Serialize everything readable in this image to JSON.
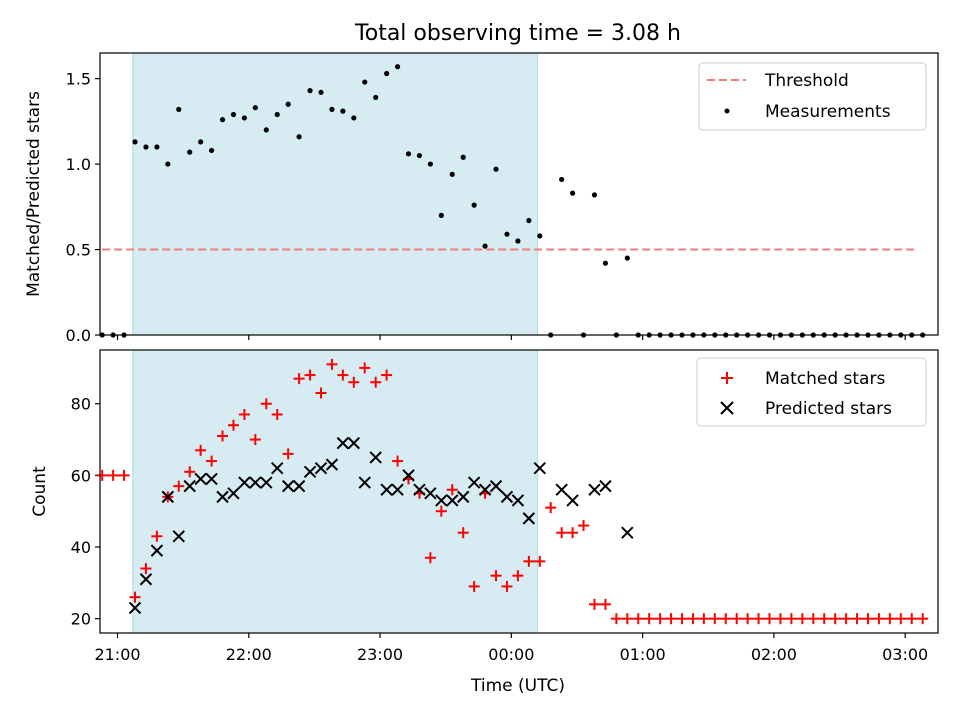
{
  "title": "Total observing time = 3.08 h",
  "colors": {
    "threshold": "#f08080",
    "measurement": "#000000",
    "matched": "#ff0000",
    "predicted": "#000000",
    "shade": "#add8e6"
  },
  "chart_data": [
    {
      "type": "scatter",
      "ylabel": "Matched/Predicted stars",
      "ylim": [
        0,
        1.65
      ],
      "yticks": [
        "0.0",
        "0.5",
        "1.0",
        "1.5"
      ],
      "shaded_region_x": [
        "21:07",
        "00:12"
      ],
      "legend_position": "top-right",
      "legend": [
        "Threshold",
        "Measurements"
      ],
      "threshold": {
        "name": "Threshold",
        "value": 0.5,
        "x_range": [
          "20:53",
          "03:05"
        ]
      },
      "series": [
        {
          "name": "Measurements",
          "x": [
            "20:53",
            "20:58",
            "21:03",
            "21:08",
            "21:13",
            "21:18",
            "21:23",
            "21:28",
            "21:33",
            "21:38",
            "21:43",
            "21:48",
            "21:53",
            "21:58",
            "22:03",
            "22:08",
            "22:13",
            "22:18",
            "22:23",
            "22:28",
            "22:33",
            "22:38",
            "22:43",
            "22:48",
            "22:53",
            "22:58",
            "23:03",
            "23:08",
            "23:13",
            "23:18",
            "23:23",
            "23:28",
            "23:33",
            "23:38",
            "23:43",
            "23:48",
            "23:53",
            "23:58",
            "00:03",
            "00:08",
            "00:13",
            "00:18",
            "00:23",
            "00:28",
            "00:33",
            "00:38",
            "00:43",
            "00:48",
            "00:53",
            "00:58",
            "01:03",
            "01:08",
            "01:13",
            "01:18",
            "01:23",
            "01:28",
            "01:33",
            "01:38",
            "01:43",
            "01:48",
            "01:53",
            "01:58",
            "02:03",
            "02:08",
            "02:13",
            "02:18",
            "02:23",
            "02:28",
            "02:33",
            "02:38",
            "02:43",
            "02:48",
            "02:53",
            "02:58",
            "03:03",
            "03:08"
          ],
          "y": [
            0.0,
            0.0,
            0.0,
            1.13,
            1.1,
            1.1,
            1.0,
            1.32,
            1.07,
            1.13,
            1.08,
            1.26,
            1.29,
            1.27,
            1.33,
            1.2,
            1.29,
            1.35,
            1.16,
            1.43,
            1.42,
            1.32,
            1.31,
            1.27,
            1.48,
            1.39,
            1.53,
            1.57,
            1.06,
            1.05,
            1.0,
            0.7,
            0.94,
            1.04,
            0.76,
            0.52,
            0.97,
            0.59,
            0.55,
            0.67,
            0.58,
            0.0,
            0.91,
            0.83,
            0.0,
            0.82,
            0.42,
            0.0,
            0.45,
            0.0,
            0.0,
            0.0,
            0.0,
            0.0,
            0.0,
            0.0,
            0.0,
            0.0,
            0.0,
            0.0,
            0.0,
            0.0,
            0.0,
            0.0,
            0.0,
            0.0,
            0.0,
            0.0,
            0.0,
            0.0,
            0.0,
            0.0,
            0.0,
            0.0,
            0.0,
            0.0
          ]
        }
      ]
    },
    {
      "type": "scatter",
      "ylabel": "Count",
      "xlabel": "Time (UTC)",
      "ylim": [
        16,
        95
      ],
      "yticks": [
        "20",
        "40",
        "60",
        "80"
      ],
      "xticks": [
        "21:00",
        "22:00",
        "23:00",
        "00:00",
        "01:00",
        "02:00",
        "03:00"
      ],
      "shaded_region_x": [
        "21:07",
        "00:12"
      ],
      "legend_position": "top-right",
      "legend": [
        "Matched stars",
        "Predicted stars"
      ],
      "series": [
        {
          "name": "Matched stars",
          "x": [
            "20:53",
            "20:58",
            "21:03",
            "21:08",
            "21:13",
            "21:18",
            "21:23",
            "21:28",
            "21:33",
            "21:38",
            "21:43",
            "21:48",
            "21:53",
            "21:58",
            "22:03",
            "22:08",
            "22:13",
            "22:18",
            "22:23",
            "22:28",
            "22:33",
            "22:38",
            "22:43",
            "22:48",
            "22:53",
            "22:58",
            "23:03",
            "23:08",
            "23:13",
            "23:18",
            "23:23",
            "23:28",
            "23:33",
            "23:38",
            "23:43",
            "23:48",
            "23:53",
            "23:58",
            "00:03",
            "00:08",
            "00:13",
            "00:18",
            "00:23",
            "00:28",
            "00:33",
            "00:38",
            "00:43",
            "00:48",
            "00:53",
            "00:58",
            "01:03",
            "01:08",
            "01:13",
            "01:18",
            "01:23",
            "01:28",
            "01:33",
            "01:38",
            "01:43",
            "01:48",
            "01:53",
            "01:58",
            "02:03",
            "02:08",
            "02:13",
            "02:18",
            "02:23",
            "02:28",
            "02:33",
            "02:38",
            "02:43",
            "02:48",
            "02:53",
            "02:58",
            "03:03",
            "03:08"
          ],
          "y": [
            60,
            60,
            60,
            26,
            34,
            43,
            54,
            57,
            61,
            67,
            64,
            71,
            74,
            77,
            70,
            80,
            77,
            66,
            87,
            88,
            83,
            91,
            88,
            86,
            90,
            86,
            88,
            64,
            59,
            55,
            37,
            50,
            56,
            44,
            29,
            55,
            32,
            29,
            32,
            36,
            36,
            51,
            44,
            44,
            46,
            24,
            24,
            20,
            20,
            20,
            20,
            20,
            20,
            20,
            20,
            20,
            20,
            20,
            20,
            20,
            20,
            20,
            20,
            20,
            20,
            20,
            20,
            20,
            20,
            20,
            20,
            20,
            20,
            20,
            20,
            20
          ]
        },
        {
          "name": "Predicted stars",
          "x": [
            "21:08",
            "21:13",
            "21:18",
            "21:23",
            "21:28",
            "21:33",
            "21:38",
            "21:43",
            "21:48",
            "21:53",
            "21:58",
            "22:03",
            "22:08",
            "22:13",
            "22:18",
            "22:23",
            "22:28",
            "22:33",
            "22:38",
            "22:43",
            "22:48",
            "22:53",
            "22:58",
            "23:03",
            "23:08",
            "23:13",
            "23:18",
            "23:23",
            "23:28",
            "23:33",
            "23:38",
            "23:43",
            "23:48",
            "23:53",
            "23:58",
            "00:03",
            "00:08",
            "00:13",
            "00:23",
            "00:28",
            "00:38",
            "00:43",
            "00:53"
          ],
          "y": [
            23,
            31,
            39,
            54,
            43,
            57,
            59,
            59,
            54,
            55,
            58,
            58,
            58,
            62,
            57,
            57,
            61,
            62,
            63,
            69,
            69,
            58,
            65,
            56,
            56,
            60,
            56,
            55,
            53,
            53,
            54,
            58,
            56,
            57,
            54,
            53,
            48,
            62,
            56,
            53,
            56,
            57,
            44
          ]
        }
      ]
    }
  ]
}
